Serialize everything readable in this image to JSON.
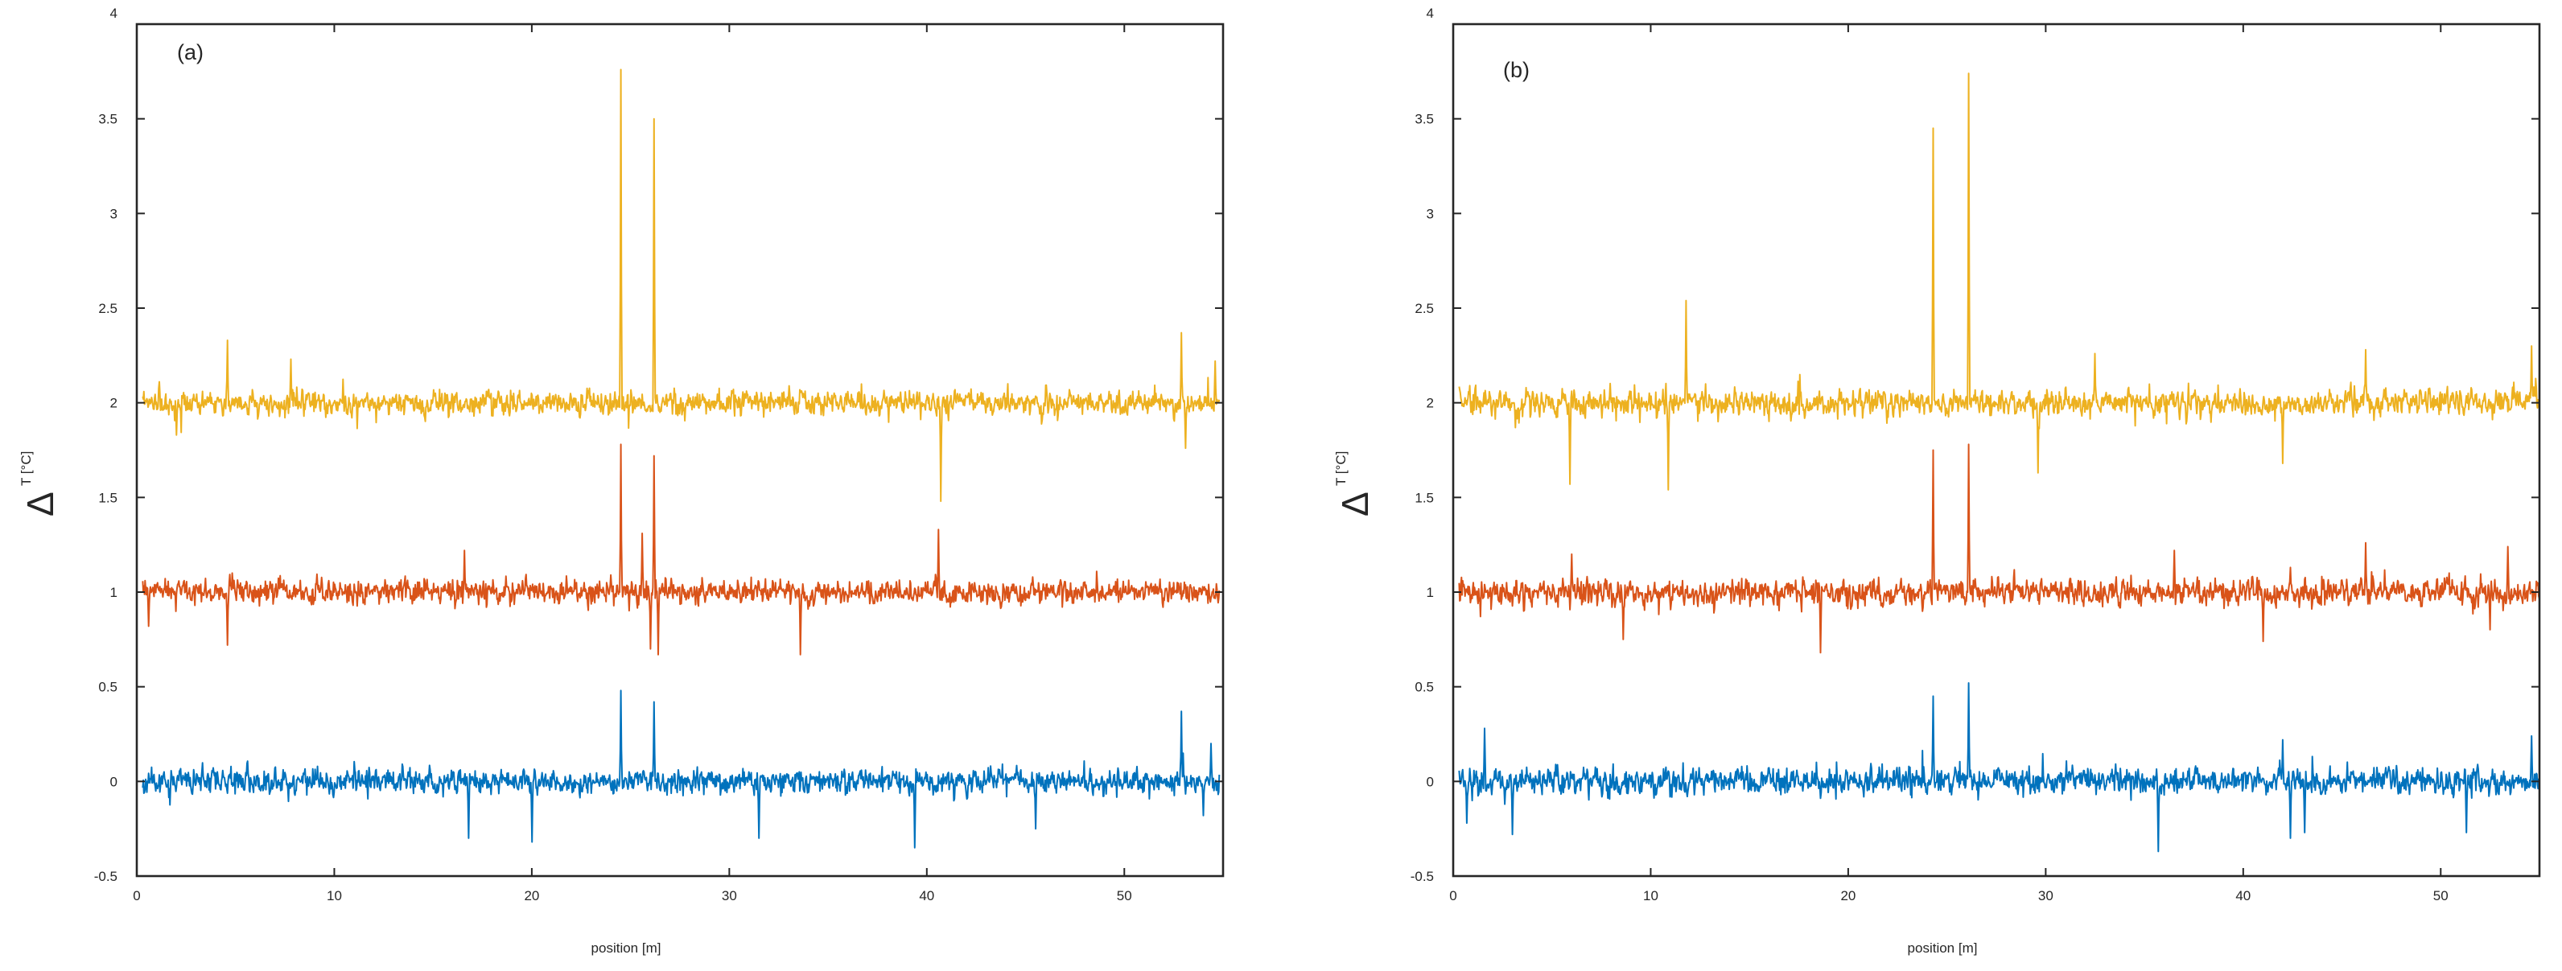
{
  "colors": {
    "series_blue": "#0072BD",
    "series_orange": "#D95319",
    "series_yellow": "#EDB120",
    "axis": "#262626",
    "background": "#ffffff"
  },
  "chart_data": [
    {
      "type": "line",
      "panel_label": "(a)",
      "xlabel": "position  [m]",
      "ylabel_symbol": "Δ",
      "ylabel_text": "T  [°C]",
      "xlim": [
        0,
        55
      ],
      "ylim": [
        -0.5,
        4
      ],
      "xticks": [
        "0",
        "10",
        "20",
        "30",
        "40",
        "50"
      ],
      "yticks": [
        "-0.5",
        "0",
        "0.5",
        "1",
        "1.5",
        "2",
        "2.5",
        "3",
        "3.5",
        "4"
      ],
      "grid": false,
      "legend": "none",
      "x_start": 0.3,
      "x_end": 54.8,
      "series": [
        {
          "color_key": "series_blue",
          "baseline": 0,
          "noise": 0.045,
          "seed": 11,
          "features": [
            {
              "x": 24.5,
              "y": 0.48
            },
            {
              "x": 26.2,
              "y": 0.42
            },
            {
              "x": 52.9,
              "y": 0.37
            },
            {
              "x": 54.4,
              "y": 0.2
            },
            {
              "x": 20.0,
              "y": -0.32
            },
            {
              "x": 39.4,
              "y": -0.35
            },
            {
              "x": 16.8,
              "y": -0.3
            },
            {
              "x": 31.5,
              "y": -0.3
            },
            {
              "x": 45.5,
              "y": -0.25
            },
            {
              "x": 54.0,
              "y": -0.18
            }
          ]
        },
        {
          "color_key": "series_orange",
          "baseline": 1,
          "noise": 0.045,
          "seed": 23,
          "features": [
            {
              "x": 24.5,
              "y": 1.78
            },
            {
              "x": 26.2,
              "y": 1.72
            },
            {
              "x": 40.6,
              "y": 1.33
            },
            {
              "x": 25.6,
              "y": 1.31
            },
            {
              "x": 4.6,
              "y": 0.72
            },
            {
              "x": 26.4,
              "y": 0.67
            },
            {
              "x": 33.6,
              "y": 0.67
            },
            {
              "x": 26.0,
              "y": 0.7
            },
            {
              "x": 16.6,
              "y": 1.22
            },
            {
              "x": 0.6,
              "y": 0.82
            }
          ]
        },
        {
          "color_key": "series_yellow",
          "baseline": 2,
          "noise": 0.045,
          "seed": 37,
          "features": [
            {
              "x": 24.5,
              "y": 3.76
            },
            {
              "x": 26.2,
              "y": 3.5
            },
            {
              "x": 40.7,
              "y": 1.48
            },
            {
              "x": 4.6,
              "y": 2.33
            },
            {
              "x": 52.9,
              "y": 2.37
            },
            {
              "x": 7.8,
              "y": 2.23
            },
            {
              "x": 54.6,
              "y": 2.22
            },
            {
              "x": 53.1,
              "y": 1.76
            },
            {
              "x": 2.0,
              "y": 1.83
            }
          ]
        }
      ]
    },
    {
      "type": "line",
      "panel_label": "(b)",
      "xlabel": "position  [m]",
      "ylabel_symbol": "Δ",
      "ylabel_text": "T  [°C]",
      "xlim": [
        0,
        55
      ],
      "ylim": [
        -0.5,
        4
      ],
      "xticks": [
        "0",
        "10",
        "20",
        "30",
        "40",
        "50"
      ],
      "yticks": [
        "-0.5",
        "0",
        "0.5",
        "1",
        "1.5",
        "2",
        "2.5",
        "3",
        "3.5",
        "4"
      ],
      "grid": false,
      "legend": "none",
      "x_start": 0.3,
      "x_end": 55.0,
      "series": [
        {
          "color_key": "series_blue",
          "baseline": 0,
          "noise": 0.05,
          "seed": 51,
          "features": [
            {
              "x": 1.6,
              "y": 0.28
            },
            {
              "x": 24.3,
              "y": 0.45
            },
            {
              "x": 26.1,
              "y": 0.52
            },
            {
              "x": 35.7,
              "y": -0.37
            },
            {
              "x": 42.0,
              "y": 0.22
            },
            {
              "x": 42.4,
              "y": -0.3
            },
            {
              "x": 43.1,
              "y": -0.27
            },
            {
              "x": 54.6,
              "y": 0.24
            },
            {
              "x": 3.0,
              "y": -0.28
            },
            {
              "x": 51.3,
              "y": -0.27
            },
            {
              "x": 0.7,
              "y": -0.22
            }
          ]
        },
        {
          "color_key": "series_orange",
          "baseline": 1,
          "noise": 0.05,
          "seed": 63,
          "features": [
            {
              "x": 24.3,
              "y": 1.75
            },
            {
              "x": 26.1,
              "y": 1.78
            },
            {
              "x": 46.2,
              "y": 1.26
            },
            {
              "x": 53.4,
              "y": 1.24
            },
            {
              "x": 18.6,
              "y": 0.68
            },
            {
              "x": 41.0,
              "y": 0.74
            },
            {
              "x": 8.6,
              "y": 0.75
            },
            {
              "x": 6.0,
              "y": 1.2
            },
            {
              "x": 36.5,
              "y": 1.22
            }
          ]
        },
        {
          "color_key": "series_yellow",
          "baseline": 2,
          "noise": 0.05,
          "seed": 79,
          "features": [
            {
              "x": 11.8,
              "y": 2.54
            },
            {
              "x": 24.3,
              "y": 3.45
            },
            {
              "x": 26.1,
              "y": 3.74
            },
            {
              "x": 5.9,
              "y": 1.57
            },
            {
              "x": 10.9,
              "y": 1.54
            },
            {
              "x": 29.6,
              "y": 1.63
            },
            {
              "x": 46.2,
              "y": 2.28
            },
            {
              "x": 54.6,
              "y": 2.3
            },
            {
              "x": 42.0,
              "y": 1.68
            },
            {
              "x": 32.5,
              "y": 2.26
            }
          ]
        }
      ]
    }
  ]
}
